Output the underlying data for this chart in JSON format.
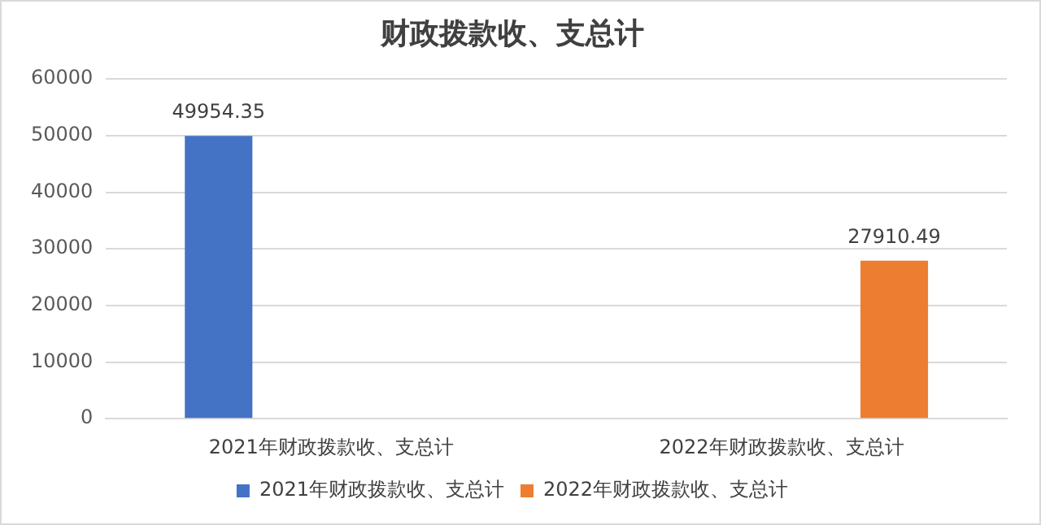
{
  "chart_data": {
    "type": "bar",
    "title": "财政拨款收、支总计",
    "categories": [
      "2021年财政拨款收、支总计",
      "2022年财政拨款收、支总计"
    ],
    "series": [
      {
        "name": "2021年财政拨款收、支总计",
        "color": "#4472c4",
        "values": [
          49954.35,
          null
        ]
      },
      {
        "name": "2022年财政拨款收、支总计",
        "color": "#ed7d31",
        "values": [
          null,
          27910.49
        ]
      }
    ],
    "ylim": [
      0,
      60000
    ],
    "yticks": [
      0,
      10000,
      20000,
      30000,
      40000,
      50000,
      60000
    ],
    "grid": "y",
    "legend": "bottom",
    "data_labels": true
  }
}
